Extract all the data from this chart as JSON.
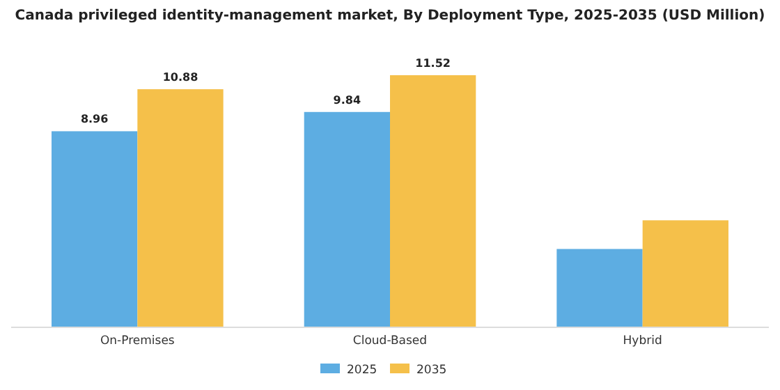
{
  "chart_data": {
    "type": "bar",
    "title": "Canada privileged identity-management market, By Deployment Type, 2025-2035 (USD Million)",
    "categories": [
      "On-Premises",
      "Cloud-Based",
      "Hybrid"
    ],
    "series": [
      {
        "name": "2025",
        "color": "#5dade2",
        "values": [
          8.96,
          9.84,
          3.58
        ],
        "value_labels": [
          "8.96",
          "9.84",
          null
        ]
      },
      {
        "name": "2035",
        "color": "#f5c04a",
        "values": [
          10.88,
          11.52,
          4.89
        ],
        "value_labels": [
          "10.88",
          "11.52",
          null
        ]
      }
    ],
    "legend": "bottom"
  }
}
